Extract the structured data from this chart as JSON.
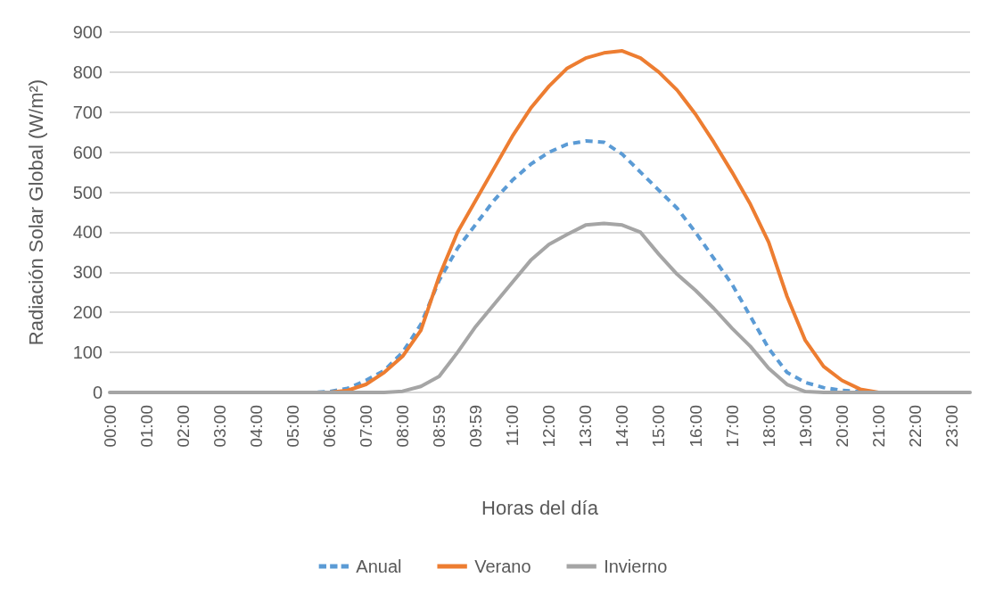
{
  "chart_data": {
    "type": "line",
    "xlabel": "Horas del día",
    "ylabel": "Radiación Solar Global (W/m²)",
    "categories": [
      "00:00",
      null,
      "01:00",
      null,
      "02:00",
      null,
      "03:00",
      null,
      "04:00",
      null,
      "05:00",
      null,
      "06:00",
      null,
      "07:00",
      null,
      "08:00",
      null,
      "08:59",
      null,
      "09:59",
      null,
      "11:00",
      null,
      "12:00",
      null,
      "13:00",
      null,
      "14:00",
      null,
      "15:00",
      null,
      "16:00",
      null,
      "17:00",
      null,
      "18:00",
      null,
      "19:00",
      null,
      "20:00",
      null,
      "21:00",
      null,
      "22:00",
      null,
      "23:00",
      null
    ],
    "series": [
      {
        "name": "Anual",
        "color": "#5b9bd5",
        "line_style": "dashed",
        "values": [
          null,
          null,
          null,
          null,
          null,
          null,
          null,
          null,
          null,
          null,
          0,
          0,
          2,
          10,
          30,
          55,
          100,
          170,
          280,
          360,
          420,
          480,
          530,
          570,
          600,
          620,
          628,
          625,
          595,
          550,
          505,
          460,
          400,
          335,
          270,
          190,
          110,
          50,
          25,
          12,
          5,
          2,
          0,
          0,
          null,
          null,
          null,
          null
        ]
      },
      {
        "name": "Verano",
        "color": "#ed7d31",
        "line_style": "solid",
        "values": [
          null,
          null,
          null,
          null,
          null,
          null,
          null,
          null,
          null,
          null,
          null,
          0,
          0,
          5,
          20,
          50,
          90,
          155,
          290,
          400,
          480,
          560,
          640,
          710,
          765,
          810,
          835,
          848,
          853,
          835,
          800,
          755,
          695,
          625,
          550,
          470,
          375,
          240,
          130,
          65,
          30,
          8,
          0,
          0,
          0,
          null,
          null,
          null
        ]
      },
      {
        "name": "Invierno",
        "color": "#a5a5a5",
        "line_style": "solid",
        "values": [
          0,
          0,
          0,
          0,
          0,
          0,
          0,
          0,
          0,
          0,
          0,
          0,
          0,
          0,
          0,
          0,
          3,
          15,
          40,
          100,
          165,
          220,
          275,
          330,
          370,
          395,
          418,
          422,
          418,
          400,
          345,
          295,
          255,
          210,
          160,
          115,
          60,
          20,
          2,
          0,
          0,
          0,
          0,
          0,
          0,
          0,
          0,
          0
        ]
      }
    ],
    "ylim": [
      0,
      900
    ],
    "yticks": [
      0,
      100,
      200,
      300,
      400,
      500,
      600,
      700,
      800,
      900
    ],
    "grid": "y",
    "legend": "bottom",
    "marker": "none"
  }
}
